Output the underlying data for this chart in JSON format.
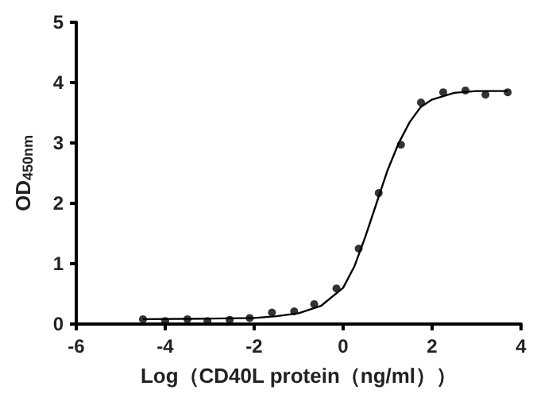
{
  "chart_data": {
    "type": "scatter",
    "xlabel": "Log（CD40L protein（ng/ml））",
    "ylabel": "OD$_{450nm}$",
    "xlim": [
      -6,
      4
    ],
    "xticks": [
      -6,
      -4,
      -2,
      0,
      2,
      4
    ],
    "ylim": [
      0,
      5
    ],
    "yticks": [
      0,
      1,
      2,
      3,
      4,
      5
    ],
    "grid": false,
    "marker": "circle",
    "series": [
      {
        "color": "#000000",
        "x": [
          -4.5,
          -4.0,
          -3.5,
          -3.05,
          -2.55,
          -2.1,
          -1.6,
          -1.1,
          -0.65,
          -0.15,
          0.35,
          0.8,
          1.3,
          1.75,
          2.25,
          2.75,
          3.2,
          3.7
        ],
        "values": [
          0.08,
          0.05,
          0.08,
          0.05,
          0.07,
          0.1,
          0.19,
          0.21,
          0.33,
          0.59,
          1.25,
          2.17,
          2.97,
          3.67,
          3.84,
          3.87,
          3.8,
          3.84
        ]
      },
      {
        "type": "line",
        "color": "#000000",
        "marker": "none",
        "line_style": "solid",
        "x": [
          -4.5,
          -3,
          -2,
          -1.5,
          -1,
          -0.5,
          0,
          0.25,
          0.5,
          0.75,
          1,
          1.25,
          1.5,
          1.75,
          2,
          2.5,
          3,
          3.7
        ],
        "values": [
          0.08,
          0.09,
          0.1,
          0.13,
          0.18,
          0.3,
          0.6,
          0.95,
          1.45,
          2.0,
          2.55,
          3.0,
          3.35,
          3.6,
          3.72,
          3.83,
          3.86,
          3.86
        ]
      }
    ]
  }
}
